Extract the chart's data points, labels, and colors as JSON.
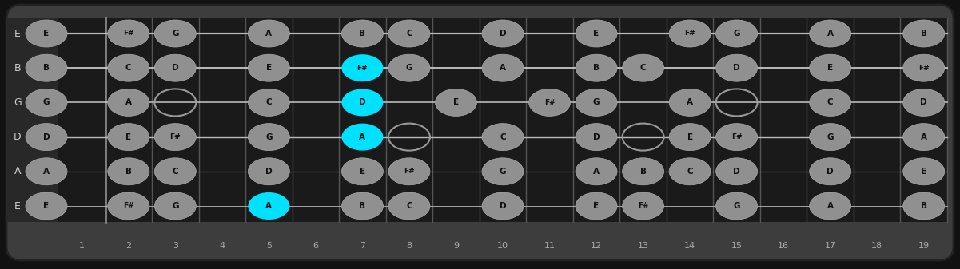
{
  "bg_color": "#444444",
  "fretboard_bg": "#1e1e1e",
  "left_panel_bg": "#2a2a2a",
  "string_color": "#cccccc",
  "note_fill": "#999999",
  "note_edge": "#bbbbbb",
  "note_highlight": "#00e0ff",
  "open_edge": "#999999",
  "num_frets": 19,
  "num_strings": 6,
  "string_names": [
    "E",
    "B",
    "G",
    "D",
    "A",
    "E"
  ],
  "notes": [
    {
      "fret": 0,
      "string": 0,
      "label": "E",
      "type": "normal"
    },
    {
      "fret": 0,
      "string": 1,
      "label": "B",
      "type": "normal"
    },
    {
      "fret": 0,
      "string": 2,
      "label": "G",
      "type": "normal"
    },
    {
      "fret": 0,
      "string": 3,
      "label": "D",
      "type": "normal"
    },
    {
      "fret": 0,
      "string": 4,
      "label": "A",
      "type": "normal"
    },
    {
      "fret": 0,
      "string": 5,
      "label": "E",
      "type": "normal"
    },
    {
      "fret": 2,
      "string": 0,
      "label": "F#",
      "type": "normal"
    },
    {
      "fret": 2,
      "string": 1,
      "label": "C",
      "type": "normal"
    },
    {
      "fret": 2,
      "string": 2,
      "label": "A",
      "type": "normal"
    },
    {
      "fret": 2,
      "string": 3,
      "label": "E",
      "type": "normal"
    },
    {
      "fret": 2,
      "string": 4,
      "label": "B",
      "type": "normal"
    },
    {
      "fret": 2,
      "string": 5,
      "label": "F#",
      "type": "normal"
    },
    {
      "fret": 3,
      "string": 0,
      "label": "G",
      "type": "normal"
    },
    {
      "fret": 3,
      "string": 1,
      "label": "D",
      "type": "normal"
    },
    {
      "fret": 3,
      "string": 2,
      "label": "",
      "type": "open"
    },
    {
      "fret": 3,
      "string": 3,
      "label": "F#",
      "type": "normal"
    },
    {
      "fret": 3,
      "string": 4,
      "label": "C",
      "type": "normal"
    },
    {
      "fret": 3,
      "string": 5,
      "label": "G",
      "type": "normal"
    },
    {
      "fret": 5,
      "string": 0,
      "label": "A",
      "type": "normal"
    },
    {
      "fret": 5,
      "string": 1,
      "label": "E",
      "type": "normal"
    },
    {
      "fret": 5,
      "string": 2,
      "label": "C",
      "type": "normal"
    },
    {
      "fret": 5,
      "string": 3,
      "label": "G",
      "type": "normal"
    },
    {
      "fret": 5,
      "string": 4,
      "label": "D",
      "type": "normal"
    },
    {
      "fret": 5,
      "string": 5,
      "label": "A",
      "type": "highlight"
    },
    {
      "fret": 7,
      "string": 0,
      "label": "B",
      "type": "normal"
    },
    {
      "fret": 7,
      "string": 1,
      "label": "F#",
      "type": "highlight"
    },
    {
      "fret": 7,
      "string": 2,
      "label": "D",
      "type": "highlight"
    },
    {
      "fret": 7,
      "string": 3,
      "label": "A",
      "type": "highlight"
    },
    {
      "fret": 7,
      "string": 4,
      "label": "E",
      "type": "normal"
    },
    {
      "fret": 7,
      "string": 5,
      "label": "B",
      "type": "normal"
    },
    {
      "fret": 8,
      "string": 0,
      "label": "C",
      "type": "normal"
    },
    {
      "fret": 8,
      "string": 1,
      "label": "G",
      "type": "normal"
    },
    {
      "fret": 8,
      "string": 3,
      "label": "",
      "type": "open"
    },
    {
      "fret": 8,
      "string": 4,
      "label": "F#",
      "type": "normal"
    },
    {
      "fret": 8,
      "string": 5,
      "label": "C",
      "type": "normal"
    },
    {
      "fret": 9,
      "string": 2,
      "label": "E",
      "type": "normal"
    },
    {
      "fret": 10,
      "string": 0,
      "label": "D",
      "type": "normal"
    },
    {
      "fret": 10,
      "string": 1,
      "label": "A",
      "type": "normal"
    },
    {
      "fret": 10,
      "string": 3,
      "label": "C",
      "type": "normal"
    },
    {
      "fret": 10,
      "string": 4,
      "label": "G",
      "type": "normal"
    },
    {
      "fret": 10,
      "string": 5,
      "label": "D",
      "type": "normal"
    },
    {
      "fret": 11,
      "string": 2,
      "label": "F#",
      "type": "normal"
    },
    {
      "fret": 12,
      "string": 0,
      "label": "E",
      "type": "normal"
    },
    {
      "fret": 12,
      "string": 1,
      "label": "B",
      "type": "normal"
    },
    {
      "fret": 12,
      "string": 2,
      "label": "G",
      "type": "normal"
    },
    {
      "fret": 12,
      "string": 3,
      "label": "D",
      "type": "normal"
    },
    {
      "fret": 12,
      "string": 4,
      "label": "A",
      "type": "normal"
    },
    {
      "fret": 12,
      "string": 5,
      "label": "E",
      "type": "normal"
    },
    {
      "fret": 13,
      "string": 1,
      "label": "C",
      "type": "normal"
    },
    {
      "fret": 13,
      "string": 3,
      "label": "",
      "type": "open"
    },
    {
      "fret": 13,
      "string": 4,
      "label": "B",
      "type": "normal"
    },
    {
      "fret": 13,
      "string": 5,
      "label": "F#",
      "type": "normal"
    },
    {
      "fret": 14,
      "string": 0,
      "label": "F#",
      "type": "normal"
    },
    {
      "fret": 14,
      "string": 2,
      "label": "A",
      "type": "normal"
    },
    {
      "fret": 14,
      "string": 3,
      "label": "E",
      "type": "normal"
    },
    {
      "fret": 14,
      "string": 4,
      "label": "C",
      "type": "normal"
    },
    {
      "fret": 15,
      "string": 0,
      "label": "G",
      "type": "normal"
    },
    {
      "fret": 15,
      "string": 1,
      "label": "D",
      "type": "normal"
    },
    {
      "fret": 15,
      "string": 2,
      "label": "",
      "type": "open"
    },
    {
      "fret": 15,
      "string": 3,
      "label": "F#",
      "type": "normal"
    },
    {
      "fret": 15,
      "string": 4,
      "label": "D",
      "type": "normal"
    },
    {
      "fret": 15,
      "string": 5,
      "label": "G",
      "type": "normal"
    },
    {
      "fret": 17,
      "string": 0,
      "label": "A",
      "type": "normal"
    },
    {
      "fret": 17,
      "string": 1,
      "label": "E",
      "type": "normal"
    },
    {
      "fret": 17,
      "string": 2,
      "label": "C",
      "type": "normal"
    },
    {
      "fret": 17,
      "string": 3,
      "label": "G",
      "type": "normal"
    },
    {
      "fret": 17,
      "string": 4,
      "label": "D",
      "type": "normal"
    },
    {
      "fret": 17,
      "string": 5,
      "label": "A",
      "type": "normal"
    },
    {
      "fret": 19,
      "string": 0,
      "label": "B",
      "type": "normal"
    },
    {
      "fret": 19,
      "string": 1,
      "label": "F#",
      "type": "normal"
    },
    {
      "fret": 19,
      "string": 2,
      "label": "D",
      "type": "normal"
    },
    {
      "fret": 19,
      "string": 3,
      "label": "A",
      "type": "normal"
    },
    {
      "fret": 19,
      "string": 4,
      "label": "E",
      "type": "normal"
    },
    {
      "fret": 19,
      "string": 5,
      "label": "B",
      "type": "normal"
    }
  ]
}
